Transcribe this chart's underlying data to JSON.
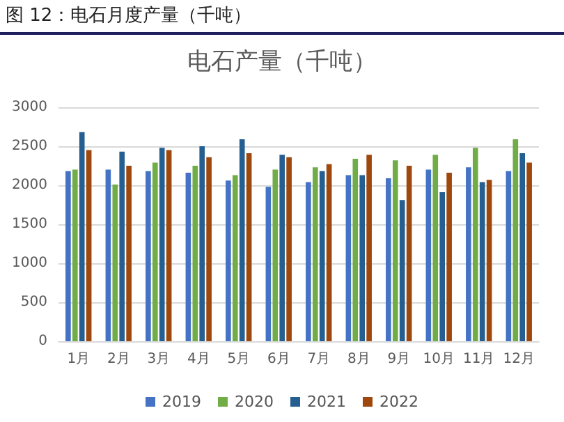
{
  "chart_data": {
    "type": "bar",
    "title": "电石产量（千吨）",
    "annotations": [
      "图 12：电石月度产量（千吨）"
    ],
    "categories": [
      "1月",
      "2月",
      "3月",
      "4月",
      "5月",
      "6月",
      "7月",
      "8月",
      "9月",
      "10月",
      "11月",
      "12月"
    ],
    "series": [
      {
        "name": "2019",
        "color": "#4472c4",
        "values": [
          2180,
          2200,
          2180,
          2160,
          2060,
          1980,
          2040,
          2130,
          2090,
          2200,
          2230,
          2180
        ]
      },
      {
        "name": "2020",
        "color": "#70ad47",
        "values": [
          2200,
          2010,
          2290,
          2250,
          2130,
          2200,
          2230,
          2340,
          2320,
          2390,
          2480,
          2590
        ]
      },
      {
        "name": "2021",
        "color": "#255e91",
        "values": [
          2680,
          2430,
          2480,
          2500,
          2590,
          2390,
          2180,
          2130,
          1810,
          1910,
          2040,
          2410
        ]
      },
      {
        "name": "2022",
        "color": "#9e480e",
        "values": [
          2450,
          2250,
          2450,
          2360,
          2410,
          2360,
          2270,
          2390,
          2250,
          2160,
          2070,
          2290
        ]
      }
    ],
    "ylim": [
      0,
      3000
    ],
    "yticks": [
      0,
      500,
      1000,
      1500,
      2000,
      2500,
      3000
    ],
    "grid": "y",
    "legend": "bottom"
  }
}
